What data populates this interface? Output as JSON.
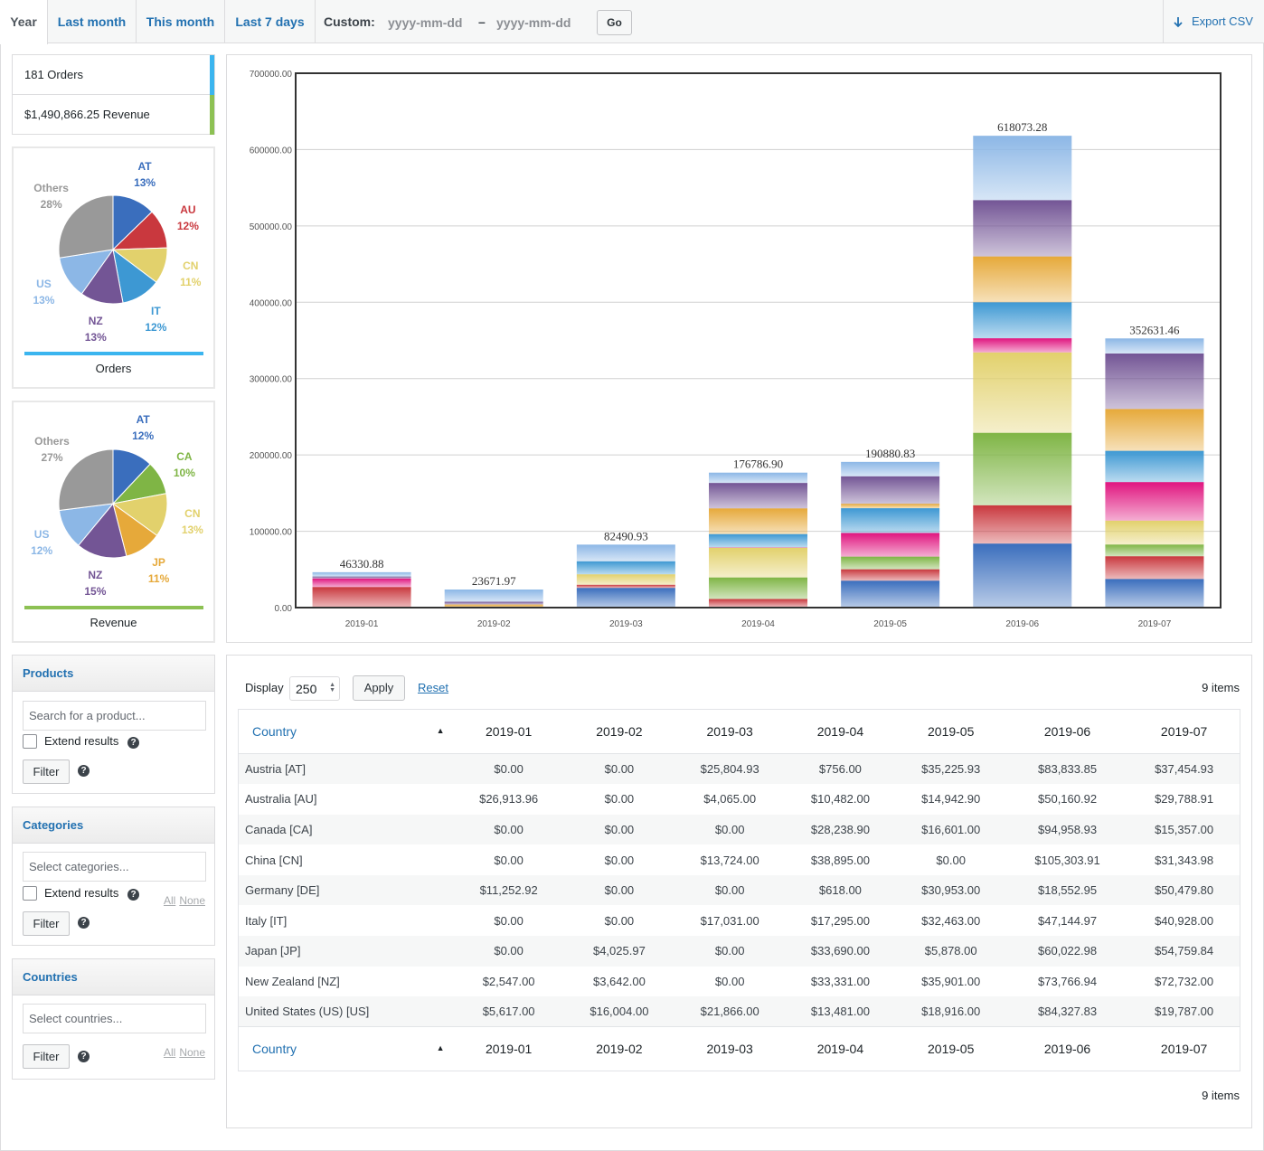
{
  "tabs": [
    {
      "label": "Year",
      "active": true
    },
    {
      "label": "Last month",
      "active": false
    },
    {
      "label": "This month",
      "active": false
    },
    {
      "label": "Last 7 days",
      "active": false
    }
  ],
  "custom": {
    "label": "Custom:",
    "start_placeholder": "yyyy-mm-dd",
    "dash": "–",
    "end_placeholder": "yyyy-mm-dd",
    "go_label": "Go"
  },
  "export": {
    "icon": "download-arrow-icon",
    "label": "Export CSV"
  },
  "summary": {
    "orders": "181 Orders",
    "revenue": "$1,490,866.25 Revenue",
    "orders_color": "#3bb5ef",
    "revenue_color": "#8dc153"
  },
  "orders_pie": {
    "caption": "Orders",
    "slices": [
      {
        "code": "AT",
        "pct": "13%",
        "value": 13,
        "color": "#3a6ebd"
      },
      {
        "code": "AU",
        "pct": "12%",
        "value": 12,
        "color": "#c9383e"
      },
      {
        "code": "CN",
        "pct": "11%",
        "value": 11,
        "color": "#e2d16c"
      },
      {
        "code": "IT",
        "pct": "12%",
        "value": 12,
        "color": "#3d98d3"
      },
      {
        "code": "NZ",
        "pct": "13%",
        "value": 13,
        "color": "#735595"
      },
      {
        "code": "US",
        "pct": "13%",
        "value": 13,
        "color": "#8cb7e6"
      },
      {
        "code": "Others",
        "pct": "28%",
        "value": 28,
        "color": "#999999"
      }
    ]
  },
  "revenue_pie": {
    "caption": "Revenue",
    "slices": [
      {
        "code": "AT",
        "pct": "12%",
        "value": 12,
        "color": "#3a6ebd"
      },
      {
        "code": "CA",
        "pct": "10%",
        "value": 10,
        "color": "#7fb545"
      },
      {
        "code": "CN",
        "pct": "13%",
        "value": 13,
        "color": "#e2d16c"
      },
      {
        "code": "JP",
        "pct": "11%",
        "value": 11,
        "color": "#e6a93a"
      },
      {
        "code": "NZ",
        "pct": "15%",
        "value": 15,
        "color": "#735595"
      },
      {
        "code": "US",
        "pct": "12%",
        "value": 12,
        "color": "#8cb7e6"
      },
      {
        "code": "Others",
        "pct": "27%",
        "value": 27,
        "color": "#999999"
      }
    ]
  },
  "chart_data": {
    "type": "bar",
    "stacked": true,
    "categories": [
      "2019-01",
      "2019-02",
      "2019-03",
      "2019-04",
      "2019-05",
      "2019-06",
      "2019-07"
    ],
    "totals": [
      "46330.88",
      "23671.97",
      "82490.93",
      "176786.90",
      "190880.83",
      "618073.28",
      "352631.46"
    ],
    "ylim": [
      0,
      700000
    ],
    "yticks": [
      "0.00",
      "100000.00",
      "200000.00",
      "300000.00",
      "400000.00",
      "500000.00",
      "600000.00",
      "700000.00"
    ],
    "grid": true,
    "series": [
      {
        "name": "Austria [AT]",
        "color": "#3a6ebd",
        "values": [
          0,
          0,
          25804.93,
          756.0,
          35225.93,
          83833.85,
          37454.93
        ]
      },
      {
        "name": "Australia [AU]",
        "color": "#c9383e",
        "values": [
          26913.96,
          0,
          4065.0,
          10482.0,
          14942.9,
          50160.92,
          29788.91
        ]
      },
      {
        "name": "Canada [CA]",
        "color": "#7fb545",
        "values": [
          0,
          0,
          0,
          28238.9,
          16601.0,
          94958.93,
          15357.0
        ]
      },
      {
        "name": "China [CN]",
        "color": "#e2d16c",
        "values": [
          0,
          0,
          13724.0,
          38895.0,
          0,
          105303.91,
          31343.98
        ]
      },
      {
        "name": "Germany [DE]",
        "color": "#e0157f",
        "values": [
          11252.92,
          0,
          0,
          618.0,
          30953.0,
          18552.95,
          50479.8
        ]
      },
      {
        "name": "Italy [IT]",
        "color": "#3d98d3",
        "values": [
          0,
          0,
          17031.0,
          17295.0,
          32463.0,
          47144.97,
          40928.0
        ]
      },
      {
        "name": "Japan [JP]",
        "color": "#e6a93a",
        "values": [
          0,
          4025.97,
          0,
          33690.0,
          5878.0,
          60022.98,
          54759.84
        ]
      },
      {
        "name": "New Zealand [NZ]",
        "color": "#735595",
        "values": [
          2547.0,
          3642.0,
          0,
          33331.0,
          35901.0,
          73766.94,
          72732.0
        ]
      },
      {
        "name": "United States (US) [US]",
        "color": "#8cb7e6",
        "values": [
          5617.0,
          16004.0,
          21866.0,
          13481.0,
          18916.0,
          84327.83,
          19787.0
        ]
      }
    ]
  },
  "products": {
    "title": "Products",
    "search_placeholder": "Search for a product...",
    "extend": "Extend results",
    "filter": "Filter",
    "help": "?"
  },
  "categories": {
    "title": "Categories",
    "select_placeholder": "Select categories...",
    "extend": "Extend results",
    "filter": "Filter",
    "help": "?",
    "all": "All",
    "none": "None"
  },
  "countries": {
    "title": "Countries",
    "select_placeholder": "Select countries...",
    "filter": "Filter",
    "help": "?",
    "all": "All",
    "none": "None"
  },
  "table": {
    "display_label": "Display",
    "display_value": "250",
    "apply": "Apply",
    "reset": "Reset",
    "items": "9 items",
    "country_header": "Country",
    "sort_icon": "▲",
    "columns": [
      "2019-01",
      "2019-02",
      "2019-03",
      "2019-04",
      "2019-05",
      "2019-06",
      "2019-07"
    ],
    "rows": [
      {
        "name": "Austria [AT]",
        "cells": [
          "$0.00",
          "$0.00",
          "$25,804.93",
          "$756.00",
          "$35,225.93",
          "$83,833.85",
          "$37,454.93"
        ]
      },
      {
        "name": "Australia [AU]",
        "cells": [
          "$26,913.96",
          "$0.00",
          "$4,065.00",
          "$10,482.00",
          "$14,942.90",
          "$50,160.92",
          "$29,788.91"
        ]
      },
      {
        "name": "Canada [CA]",
        "cells": [
          "$0.00",
          "$0.00",
          "$0.00",
          "$28,238.90",
          "$16,601.00",
          "$94,958.93",
          "$15,357.00"
        ]
      },
      {
        "name": "China [CN]",
        "cells": [
          "$0.00",
          "$0.00",
          "$13,724.00",
          "$38,895.00",
          "$0.00",
          "$105,303.91",
          "$31,343.98"
        ]
      },
      {
        "name": "Germany [DE]",
        "cells": [
          "$11,252.92",
          "$0.00",
          "$0.00",
          "$618.00",
          "$30,953.00",
          "$18,552.95",
          "$50,479.80"
        ]
      },
      {
        "name": "Italy [IT]",
        "cells": [
          "$0.00",
          "$0.00",
          "$17,031.00",
          "$17,295.00",
          "$32,463.00",
          "$47,144.97",
          "$40,928.00"
        ]
      },
      {
        "name": "Japan [JP]",
        "cells": [
          "$0.00",
          "$4,025.97",
          "$0.00",
          "$33,690.00",
          "$5,878.00",
          "$60,022.98",
          "$54,759.84"
        ]
      },
      {
        "name": "New Zealand [NZ]",
        "cells": [
          "$2,547.00",
          "$3,642.00",
          "$0.00",
          "$33,331.00",
          "$35,901.00",
          "$73,766.94",
          "$72,732.00"
        ]
      },
      {
        "name": "United States (US) [US]",
        "cells": [
          "$5,617.00",
          "$16,004.00",
          "$21,866.00",
          "$13,481.00",
          "$18,916.00",
          "$84,327.83",
          "$19,787.00"
        ]
      }
    ]
  }
}
